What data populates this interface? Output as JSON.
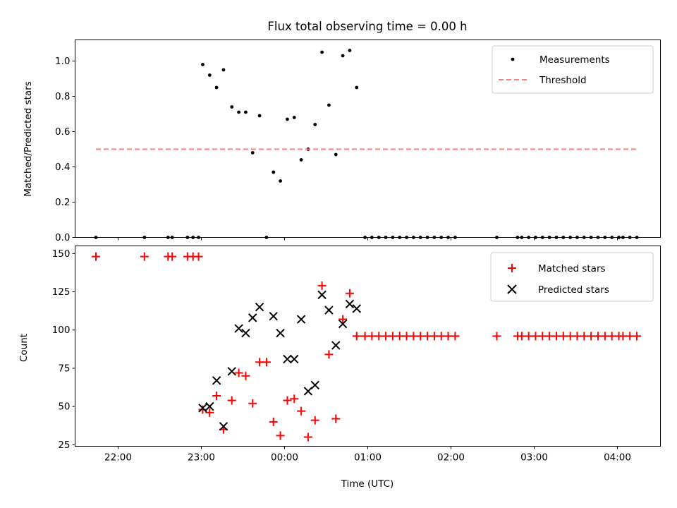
{
  "figure": {
    "title": "Flux total observing time = 0.00 h"
  },
  "chart_data": [
    {
      "type": "scatter",
      "title": "Flux total observing time = 0.00 h",
      "xlabel": "",
      "ylabel": "Matched/Predicted stars",
      "x_axis": {
        "kind": "time",
        "ticks": [
          "22:00",
          "23:00",
          "00:00",
          "01:00",
          "02:00",
          "03:00",
          "04:00"
        ],
        "range": [
          "21:29",
          "04:31"
        ],
        "show_tick_labels": false
      },
      "ylim": [
        0,
        1.12
      ],
      "yticks": [
        "0.0",
        "0.2",
        "0.4",
        "0.6",
        "0.8",
        "1.0"
      ],
      "legend": {
        "placement": "top-right",
        "entries": [
          "Measurements",
          "Threshold"
        ]
      },
      "series": [
        {
          "name": "Measurements",
          "marker": "dot",
          "color": "#000000",
          "points": [
            [
              "21:44",
              0.0
            ],
            [
              "22:19",
              0.0
            ],
            [
              "22:36",
              0.0
            ],
            [
              "22:39",
              0.0
            ],
            [
              "22:50",
              0.0
            ],
            [
              "22:54",
              0.0
            ],
            [
              "22:58",
              0.0
            ],
            [
              "23:01",
              0.98
            ],
            [
              "23:06",
              0.92
            ],
            [
              "23:11",
              0.85
            ],
            [
              "23:16",
              0.95
            ],
            [
              "23:22",
              0.74
            ],
            [
              "23:27",
              0.71
            ],
            [
              "23:32",
              0.71
            ],
            [
              "23:37",
              0.48
            ],
            [
              "23:42",
              0.69
            ],
            [
              "23:47",
              0.0
            ],
            [
              "23:52",
              0.37
            ],
            [
              "23:57",
              0.32
            ],
            [
              "00:02",
              0.67
            ],
            [
              "00:07",
              0.68
            ],
            [
              "00:12",
              0.44
            ],
            [
              "00:17",
              0.5
            ],
            [
              "00:22",
              0.64
            ],
            [
              "00:27",
              1.05
            ],
            [
              "00:32",
              0.75
            ],
            [
              "00:37",
              0.47
            ],
            [
              "00:42",
              1.03
            ],
            [
              "00:47",
              1.06
            ],
            [
              "00:52",
              0.85
            ],
            [
              "00:58",
              0.0
            ],
            [
              "01:03",
              0.0
            ],
            [
              "01:08",
              0.0
            ],
            [
              "01:13",
              0.0
            ],
            [
              "01:18",
              0.0
            ],
            [
              "01:23",
              0.0
            ],
            [
              "01:28",
              0.0
            ],
            [
              "01:33",
              0.0
            ],
            [
              "01:38",
              0.0
            ],
            [
              "01:43",
              0.0
            ],
            [
              "01:48",
              0.0
            ],
            [
              "01:53",
              0.0
            ],
            [
              "01:58",
              0.0
            ],
            [
              "02:03",
              0.0
            ],
            [
              "02:33",
              0.0
            ],
            [
              "02:48",
              0.0
            ],
            [
              "02:51",
              0.0
            ],
            [
              "02:56",
              0.0
            ],
            [
              "03:01",
              0.0
            ],
            [
              "03:06",
              0.0
            ],
            [
              "03:11",
              0.0
            ],
            [
              "03:16",
              0.0
            ],
            [
              "03:21",
              0.0
            ],
            [
              "03:26",
              0.0
            ],
            [
              "03:31",
              0.0
            ],
            [
              "03:36",
              0.0
            ],
            [
              "03:41",
              0.0
            ],
            [
              "03:46",
              0.0
            ],
            [
              "03:51",
              0.0
            ],
            [
              "03:56",
              0.0
            ],
            [
              "04:01",
              0.0
            ],
            [
              "04:04",
              0.0
            ],
            [
              "04:09",
              0.0
            ],
            [
              "04:14",
              0.0
            ]
          ]
        },
        {
          "name": "Threshold",
          "type": "line",
          "style": "dashed",
          "color": "#ff7f7f",
          "points": [
            [
              "21:44",
              0.5
            ],
            [
              "04:14",
              0.5
            ]
          ]
        }
      ]
    },
    {
      "type": "scatter",
      "title": "",
      "xlabel": "Time (UTC)",
      "ylabel": "Count",
      "x_axis": {
        "kind": "time",
        "ticks": [
          "22:00",
          "23:00",
          "00:00",
          "01:00",
          "02:00",
          "03:00",
          "04:00"
        ],
        "range": [
          "21:29",
          "04:31"
        ],
        "show_tick_labels": true
      },
      "ylim": [
        24,
        155
      ],
      "yticks": [
        "25",
        "50",
        "75",
        "100",
        "125",
        "150"
      ],
      "legend": {
        "placement": "top-right",
        "entries": [
          "Matched stars",
          "Predicted stars"
        ]
      },
      "series": [
        {
          "name": "Matched stars",
          "marker": "plus",
          "color": "#ff0000",
          "points": [
            [
              "21:44",
              148
            ],
            [
              "22:19",
              148
            ],
            [
              "22:36",
              148
            ],
            [
              "22:39",
              148
            ],
            [
              "22:50",
              148
            ],
            [
              "22:54",
              148
            ],
            [
              "22:58",
              148
            ],
            [
              "23:01",
              48
            ],
            [
              "23:06",
              46
            ],
            [
              "23:11",
              57
            ],
            [
              "23:16",
              35
            ],
            [
              "23:22",
              54
            ],
            [
              "23:27",
              72
            ],
            [
              "23:32",
              70
            ],
            [
              "23:37",
              52
            ],
            [
              "23:42",
              79
            ],
            [
              "23:47",
              79
            ],
            [
              "23:52",
              40
            ],
            [
              "23:57",
              31
            ],
            [
              "00:02",
              54
            ],
            [
              "00:07",
              55
            ],
            [
              "00:12",
              47
            ],
            [
              "00:17",
              30
            ],
            [
              "00:22",
              41
            ],
            [
              "00:27",
              129
            ],
            [
              "00:32",
              84
            ],
            [
              "00:37",
              42
            ],
            [
              "00:42",
              107
            ],
            [
              "00:47",
              124
            ],
            [
              "00:52",
              96
            ],
            [
              "00:58",
              96
            ],
            [
              "01:03",
              96
            ],
            [
              "01:08",
              96
            ],
            [
              "01:13",
              96
            ],
            [
              "01:18",
              96
            ],
            [
              "01:23",
              96
            ],
            [
              "01:28",
              96
            ],
            [
              "01:33",
              96
            ],
            [
              "01:38",
              96
            ],
            [
              "01:43",
              96
            ],
            [
              "01:48",
              96
            ],
            [
              "01:53",
              96
            ],
            [
              "01:58",
              96
            ],
            [
              "02:03",
              96
            ],
            [
              "02:33",
              96
            ],
            [
              "02:48",
              96
            ],
            [
              "02:51",
              96
            ],
            [
              "02:56",
              96
            ],
            [
              "03:01",
              96
            ],
            [
              "03:06",
              96
            ],
            [
              "03:11",
              96
            ],
            [
              "03:16",
              96
            ],
            [
              "03:21",
              96
            ],
            [
              "03:26",
              96
            ],
            [
              "03:31",
              96
            ],
            [
              "03:36",
              96
            ],
            [
              "03:41",
              96
            ],
            [
              "03:46",
              96
            ],
            [
              "03:51",
              96
            ],
            [
              "03:56",
              96
            ],
            [
              "04:01",
              96
            ],
            [
              "04:04",
              96
            ],
            [
              "04:09",
              96
            ],
            [
              "04:14",
              96
            ]
          ]
        },
        {
          "name": "Predicted stars",
          "marker": "x",
          "color": "#000000",
          "points": [
            [
              "23:01",
              49
            ],
            [
              "23:06",
              50
            ],
            [
              "23:11",
              67
            ],
            [
              "23:16",
              37
            ],
            [
              "23:22",
              73
            ],
            [
              "23:27",
              101
            ],
            [
              "23:32",
              98
            ],
            [
              "23:37",
              108
            ],
            [
              "23:42",
              115
            ],
            [
              "23:52",
              109
            ],
            [
              "23:57",
              98
            ],
            [
              "00:02",
              81
            ],
            [
              "00:07",
              81
            ],
            [
              "00:12",
              107
            ],
            [
              "00:17",
              60
            ],
            [
              "00:22",
              64
            ],
            [
              "00:27",
              123
            ],
            [
              "00:32",
              113
            ],
            [
              "00:37",
              90
            ],
            [
              "00:42",
              104
            ],
            [
              "00:47",
              117
            ],
            [
              "00:52",
              114
            ]
          ]
        }
      ]
    }
  ]
}
